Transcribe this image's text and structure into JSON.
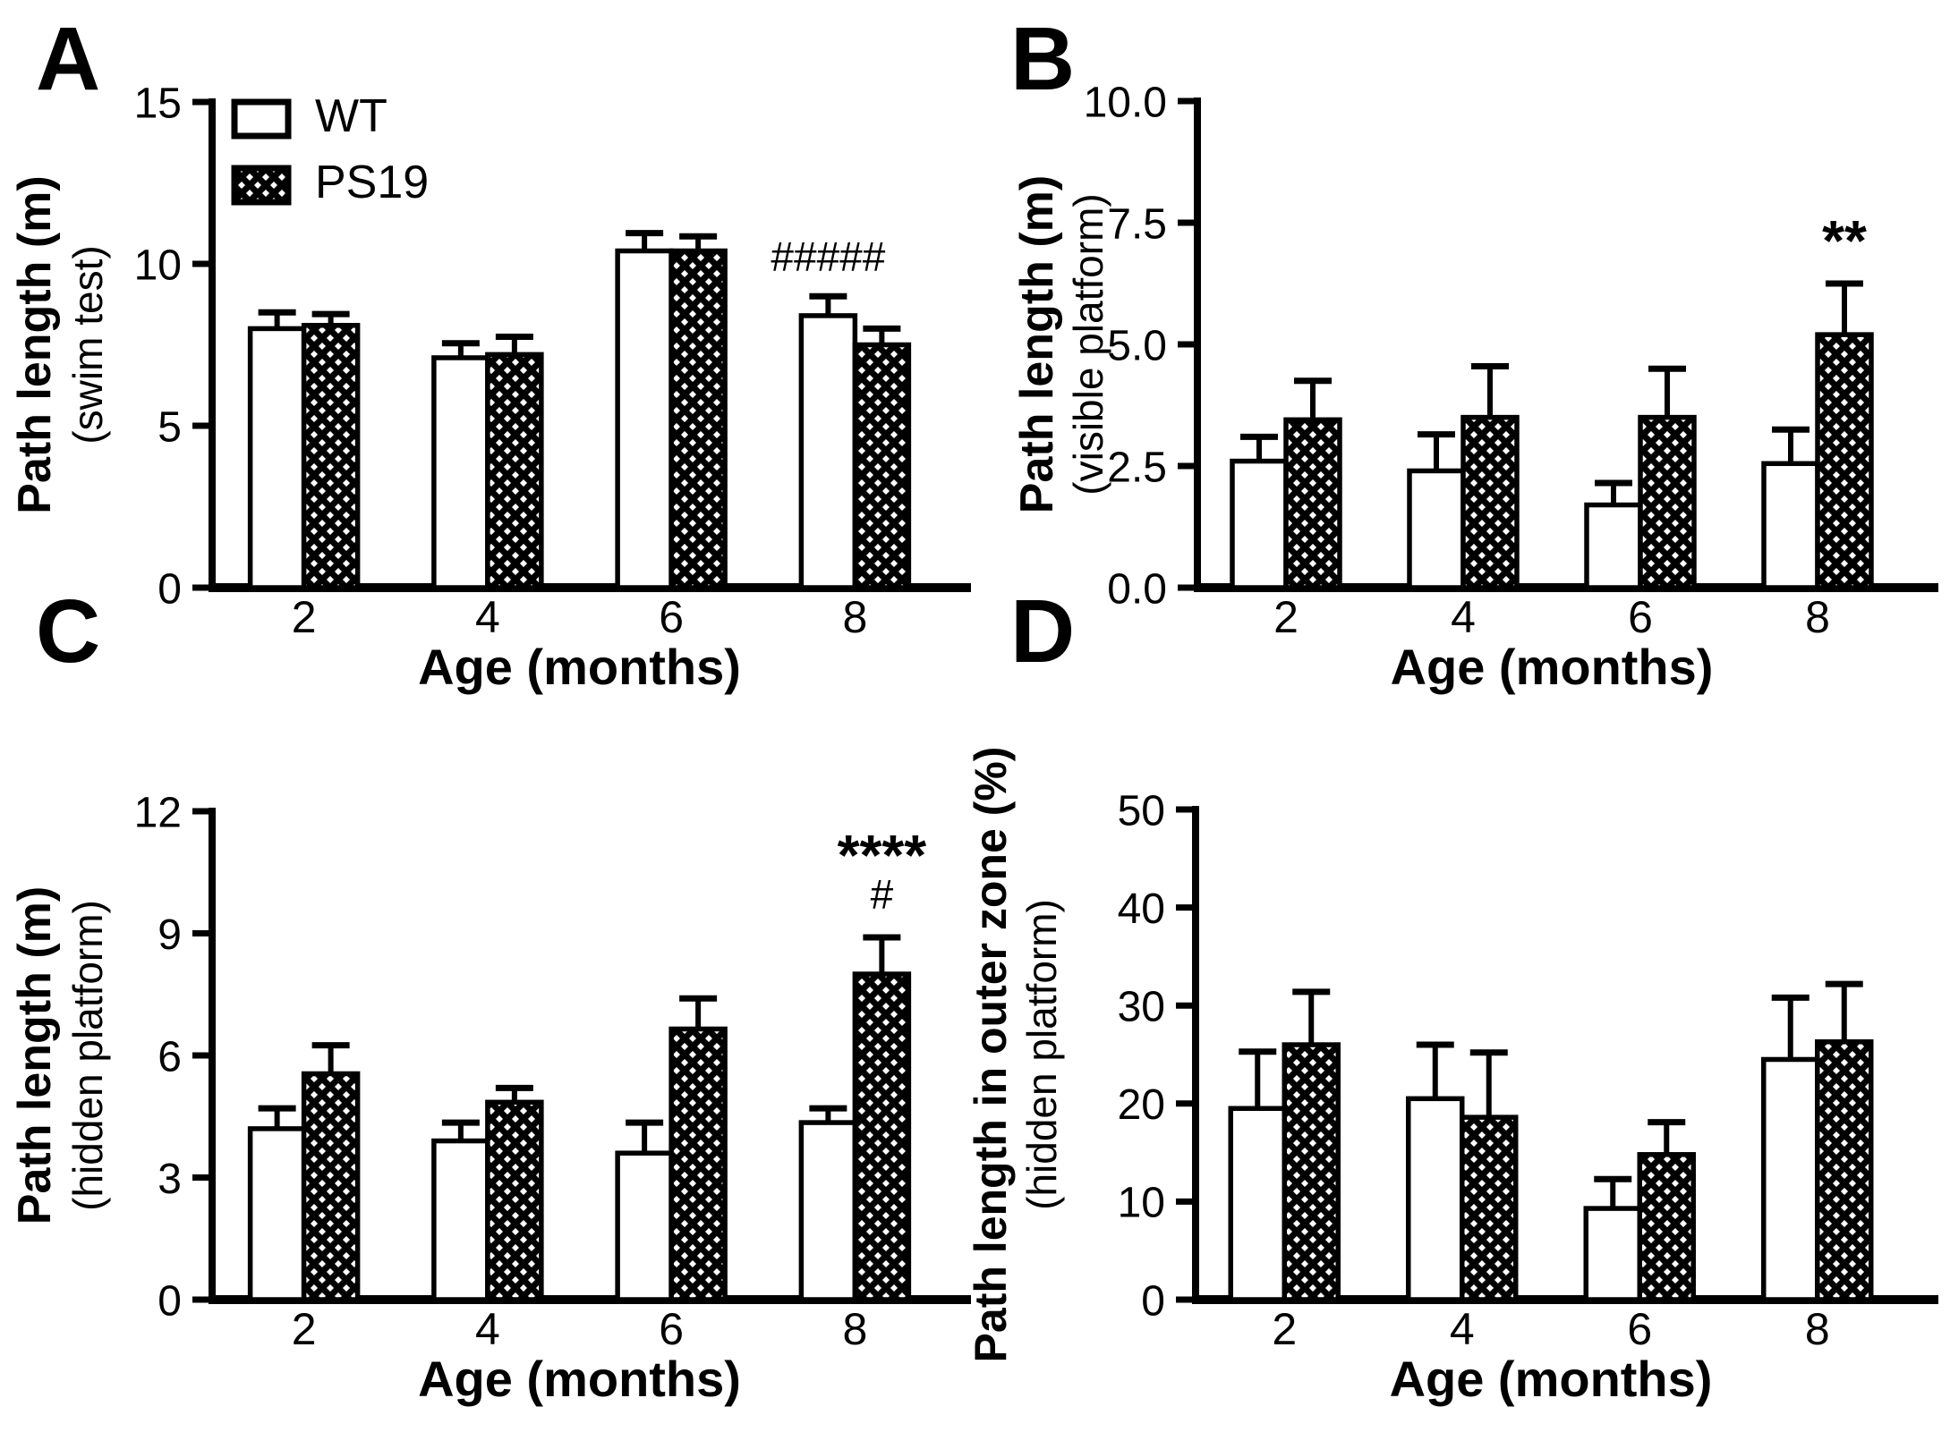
{
  "figure": {
    "background_color": "#ffffff",
    "ink_color": "#000000",
    "description": "Four-panel bar chart figure comparing WT and PS19 mice across ages"
  },
  "legend": {
    "items": [
      {
        "label": "WT",
        "fill": "white"
      },
      {
        "label": "PS19",
        "fill": "crosshatch"
      }
    ],
    "position": "top-left-inside-panel-A"
  },
  "chart_data": [
    {
      "type": "bar",
      "panel": "A",
      "ylabel": "Path length (m)",
      "ylabel_sub": "(swim test)",
      "xlabel": "Age (months)",
      "categories": [
        "2",
        "4",
        "6",
        "8"
      ],
      "ylim": [
        0,
        15
      ],
      "ytick_values": [
        0,
        5,
        10,
        15
      ],
      "ytick_labels": [
        "0",
        "5",
        "10",
        "15"
      ],
      "grid": false,
      "legend": true,
      "series": [
        {
          "name": "WT",
          "fill": "white",
          "values": [
            8.0,
            7.1,
            10.4,
            8.4
          ],
          "errors": [
            0.5,
            0.45,
            0.55,
            0.6
          ]
        },
        {
          "name": "PS19",
          "fill": "crosshatch",
          "values": [
            8.1,
            7.2,
            10.4,
            7.5
          ],
          "errors": [
            0.35,
            0.55,
            0.45,
            0.5
          ]
        }
      ],
      "annotations": [
        {
          "text": "#####",
          "category": 3,
          "series": 0,
          "gap": 28,
          "size": 46,
          "bold": false
        }
      ]
    },
    {
      "type": "bar",
      "panel": "B",
      "ylabel": "Path length (m)",
      "ylabel_sub": "(visible platform)",
      "xlabel": "Age (months)",
      "categories": [
        "2",
        "4",
        "6",
        "8"
      ],
      "ylim": [
        0,
        10
      ],
      "ytick_values": [
        0,
        2.5,
        5,
        7.5,
        10
      ],
      "ytick_labels": [
        "0.0",
        "2.5",
        "5.0",
        "7.5",
        "10.0"
      ],
      "grid": false,
      "legend": false,
      "series": [
        {
          "name": "WT",
          "fill": "white",
          "values": [
            2.6,
            2.4,
            1.7,
            2.55
          ],
          "errors": [
            0.5,
            0.75,
            0.45,
            0.7
          ]
        },
        {
          "name": "PS19",
          "fill": "crosshatch",
          "values": [
            3.45,
            3.5,
            3.5,
            5.2
          ],
          "errors": [
            0.8,
            1.05,
            1.0,
            1.05
          ]
        }
      ],
      "annotations": [
        {
          "text": "**",
          "category": 3,
          "series": 1,
          "gap": 26,
          "size": 64,
          "bold": true
        }
      ]
    },
    {
      "type": "bar",
      "panel": "C",
      "ylabel": "Path length (m)",
      "ylabel_sub": "(hidden platform)",
      "xlabel": "Age (months)",
      "categories": [
        "2",
        "4",
        "6",
        "8"
      ],
      "ylim": [
        0,
        12
      ],
      "ytick_values": [
        0,
        3,
        6,
        9,
        12
      ],
      "ytick_labels": [
        "0",
        "3",
        "6",
        "9",
        "12"
      ],
      "grid": false,
      "legend": false,
      "series": [
        {
          "name": "WT",
          "fill": "white",
          "values": [
            4.2,
            3.9,
            3.6,
            4.35
          ],
          "errors": [
            0.5,
            0.45,
            0.75,
            0.35
          ]
        },
        {
          "name": "PS19",
          "fill": "crosshatch",
          "values": [
            5.55,
            4.85,
            6.65,
            8.0
          ],
          "errors": [
            0.7,
            0.35,
            0.75,
            0.9
          ]
        }
      ],
      "annotations": [
        {
          "text": "#",
          "category": 3,
          "series": 1,
          "gap": 32,
          "size": 46,
          "bold": false
        },
        {
          "text": "****",
          "category": 3,
          "series": 1,
          "gap": 70,
          "size": 64,
          "bold": true
        }
      ]
    },
    {
      "type": "bar",
      "panel": "D",
      "ylabel": "Path length in outer zone (%)",
      "ylabel_sub": "(hidden platform)",
      "xlabel": "Age (months)",
      "categories": [
        "2",
        "4",
        "6",
        "8"
      ],
      "ylim": [
        0,
        50
      ],
      "ytick_values": [
        0,
        10,
        20,
        30,
        40,
        50
      ],
      "ytick_labels": [
        "0",
        "10",
        "20",
        "30",
        "40",
        "50"
      ],
      "grid": false,
      "legend": false,
      "series": [
        {
          "name": "WT",
          "fill": "white",
          "values": [
            19.5,
            20.5,
            9.3,
            24.5
          ],
          "errors": [
            5.8,
            5.5,
            3.0,
            6.3
          ]
        },
        {
          "name": "PS19",
          "fill": "crosshatch",
          "values": [
            26.0,
            18.6,
            14.8,
            26.3
          ],
          "errors": [
            5.4,
            6.6,
            3.3,
            5.9
          ]
        }
      ],
      "annotations": []
    }
  ]
}
